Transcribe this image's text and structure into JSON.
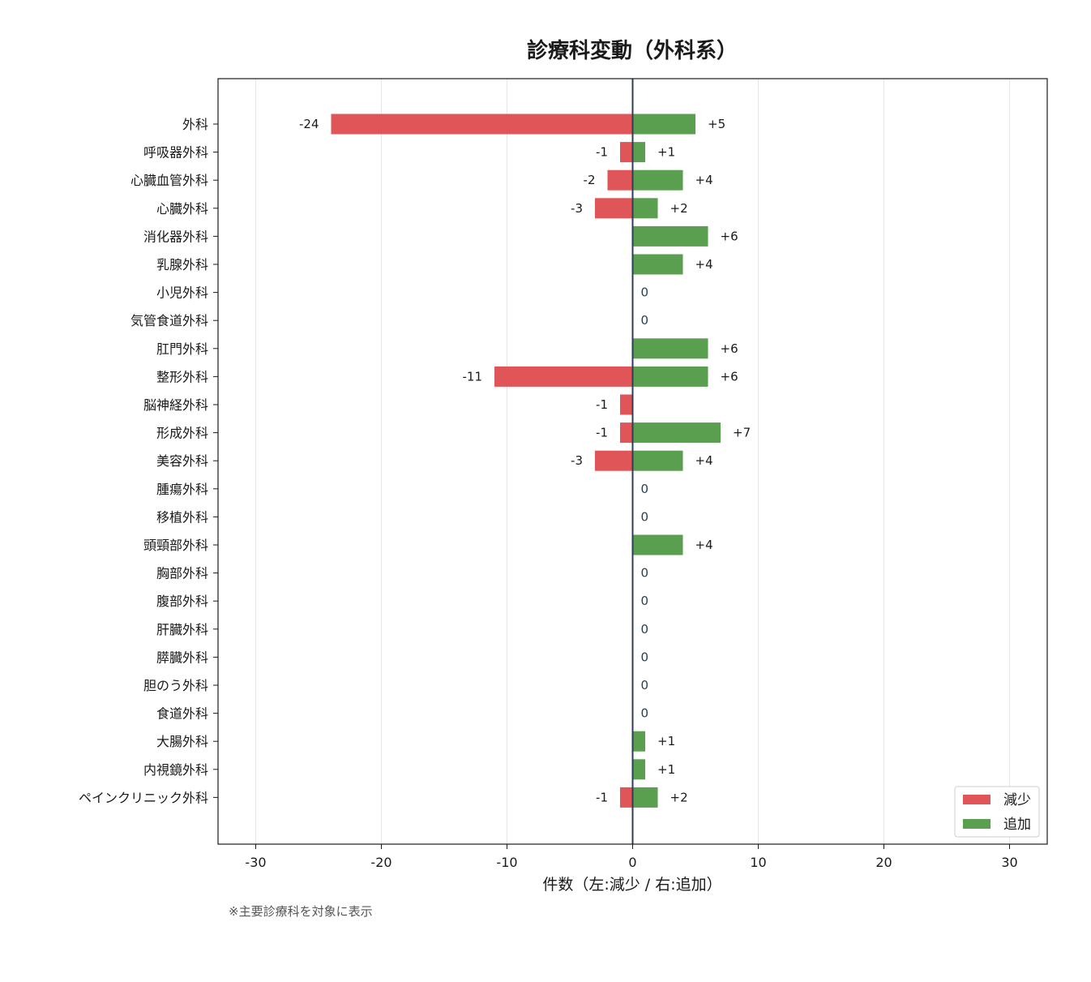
{
  "chart_data": {
    "type": "bar",
    "orientation": "horizontal",
    "title": "診療科変動（外科系）",
    "xlabel": "件数（左:減少 / 右:追加）",
    "xlim": [
      -33,
      33
    ],
    "xticks": [
      -30,
      -20,
      -10,
      0,
      10,
      20,
      30
    ],
    "grid": "vertical",
    "legend_position": "bottom-right",
    "categories": [
      "外科",
      "呼吸器外科",
      "心臓血管外科",
      "心臓外科",
      "消化器外科",
      "乳腺外科",
      "小児外科",
      "気管食道外科",
      "肛門外科",
      "整形外科",
      "脳神経外科",
      "形成外科",
      "美容外科",
      "腫瘍外科",
      "移植外科",
      "頭頸部外科",
      "胸部外科",
      "腹部外科",
      "肝臓外科",
      "膵臓外科",
      "胆のう外科",
      "食道外科",
      "大腸外科",
      "内視鏡外科",
      "ペインクリニック外科"
    ],
    "series": [
      {
        "name": "減少",
        "color": "#e05557",
        "values": [
          -24,
          -1,
          -2,
          -3,
          0,
          0,
          0,
          0,
          0,
          -11,
          -1,
          -1,
          -3,
          0,
          0,
          0,
          0,
          0,
          0,
          0,
          0,
          0,
          0,
          0,
          -1
        ],
        "labels": [
          "-24",
          "-1",
          "-2",
          "-3",
          "",
          "",
          "",
          "",
          "",
          "-11",
          "-1",
          "-1",
          "-3",
          "",
          "",
          "",
          "",
          "",
          "",
          "",
          "",
          "",
          "",
          "",
          "-1"
        ]
      },
      {
        "name": "追加",
        "color": "#5a9e4f",
        "values": [
          5,
          1,
          4,
          2,
          6,
          4,
          0,
          0,
          6,
          6,
          0,
          7,
          4,
          0,
          0,
          4,
          0,
          0,
          0,
          0,
          0,
          0,
          1,
          1,
          2
        ],
        "labels": [
          "+5",
          "+1",
          "+4",
          "+2",
          "+6",
          "+4",
          "",
          "",
          "+6",
          "+6",
          "",
          "+7",
          "+4",
          "",
          "",
          "+4",
          "",
          "",
          "",
          "",
          "",
          "",
          "+1",
          "+1",
          "+2"
        ]
      }
    ],
    "zero_labels": [
      "",
      "",
      "",
      "",
      "",
      "",
      "0",
      "0",
      "",
      "",
      "",
      "",
      "",
      "0",
      "0",
      "",
      "0",
      "0",
      "0",
      "0",
      "0",
      "0",
      "",
      "",
      ""
    ]
  },
  "note": "※主要診療科を対象に表示"
}
